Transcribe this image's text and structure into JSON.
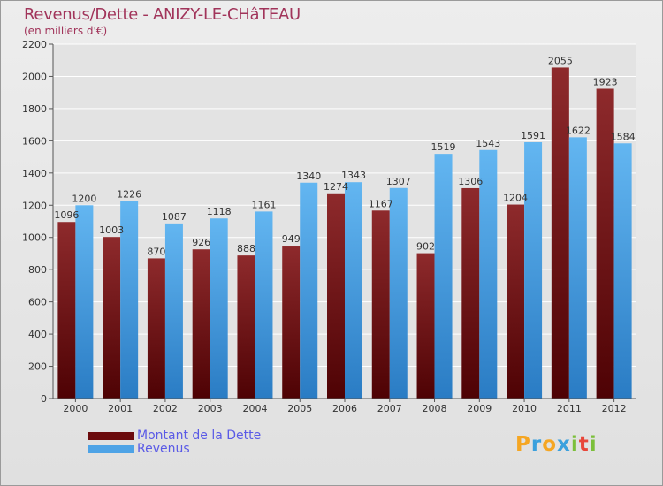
{
  "title": "Revenus/Dette - ANIZY-LE-CHâTEAU",
  "subtitle": "(en milliers d'€)",
  "logo": {
    "letters": [
      "P",
      "r",
      "o",
      "x",
      "i",
      "t",
      "i"
    ],
    "colors": [
      "#f5a623",
      "#3aa0dd",
      "#f5a623",
      "#3aa0dd",
      "#7bbf3a",
      "#e8463a",
      "#7bbf3a"
    ]
  },
  "chart_data": {
    "type": "bar",
    "categories": [
      "2000",
      "2001",
      "2002",
      "2003",
      "2004",
      "2005",
      "2006",
      "2007",
      "2008",
      "2009",
      "2010",
      "2011",
      "2012"
    ],
    "series": [
      {
        "name": "Montant de la Dette",
        "color": "#7a1518",
        "values": [
          1096,
          1003,
          870,
          926,
          888,
          949,
          1274,
          1167,
          902,
          1306,
          1204,
          2055,
          1923
        ]
      },
      {
        "name": "Revenus",
        "color": "#4ea3e6",
        "values": [
          1200,
          1226,
          1087,
          1118,
          1161,
          1340,
          1343,
          1307,
          1519,
          1543,
          1591,
          1622,
          1584
        ]
      }
    ],
    "yticks": [
      0,
      200,
      400,
      600,
      800,
      1000,
      1200,
      1400,
      1600,
      1800,
      2000,
      2200
    ],
    "ylim": [
      0,
      2200
    ],
    "grid": true
  }
}
